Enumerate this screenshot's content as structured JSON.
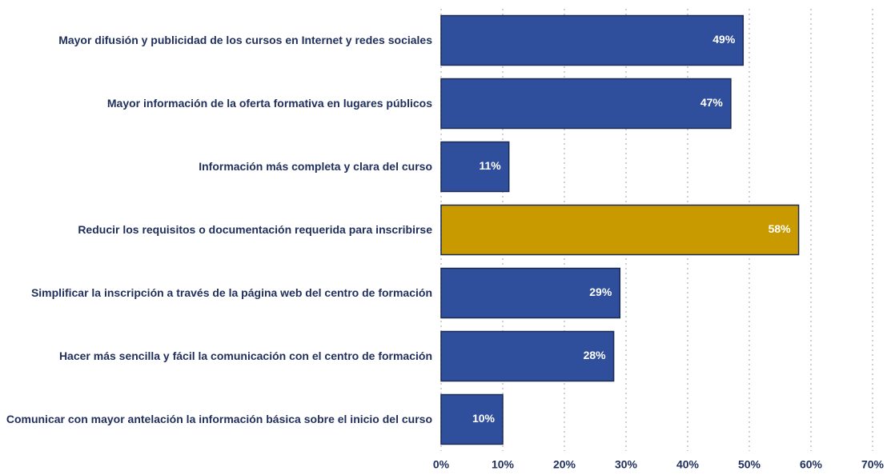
{
  "chart_data": {
    "type": "barh",
    "categories": [
      "Mayor difusión y publicidad de los cursos en Internet y redes sociales",
      "Mayor información de la oferta formativa en lugares públicos",
      "Información más completa y clara del curso",
      "Reducir los requisitos o documentación requerida para inscribirse",
      "Simplificar la inscripción a través de la página web del centro de formación",
      "Hacer más sencilla y fácil la comunicación con el centro de formación",
      "Comunicar con mayor antelación la información básica sobre el inicio del curso"
    ],
    "values": [
      49,
      47,
      11,
      58,
      29,
      28,
      10
    ],
    "value_labels": [
      "49%",
      "47%",
      "11%",
      "58%",
      "29%",
      "28%",
      "10%"
    ],
    "colors": [
      "#2f4e9c",
      "#2f4e9c",
      "#2f4e9c",
      "#c99a00",
      "#2f4e9c",
      "#2f4e9c",
      "#2f4e9c"
    ],
    "xlim": [
      0,
      70
    ],
    "xticks": [
      {
        "value": 0,
        "label": "0%"
      },
      {
        "value": 10,
        "label": "10%"
      },
      {
        "value": 20,
        "label": "20%"
      },
      {
        "value": 30,
        "label": "30%"
      },
      {
        "value": 40,
        "label": "40%"
      },
      {
        "value": 50,
        "label": "50%"
      },
      {
        "value": 60,
        "label": "60%"
      },
      {
        "value": 70,
        "label": "70%"
      }
    ],
    "grid": true
  }
}
